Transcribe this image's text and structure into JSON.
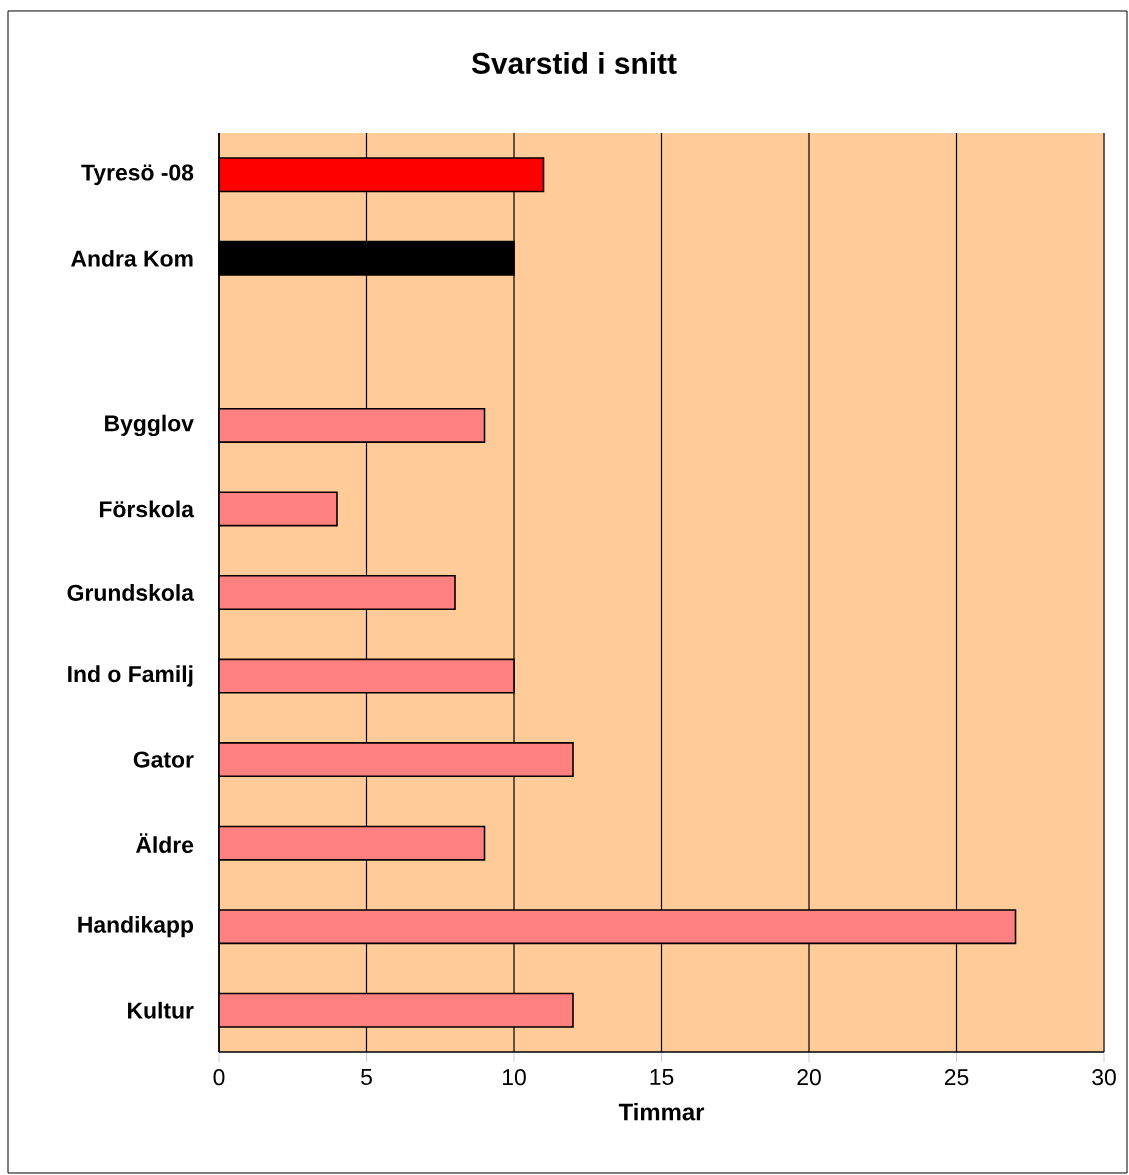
{
  "chart_data": {
    "type": "bar",
    "orientation": "horizontal",
    "title": "Svarstid i snitt",
    "xlabel": "Timmar",
    "categories": [
      "Tyresö -08",
      "Andra Kom",
      null,
      "Bygglov",
      "Förskola",
      "Grundskola",
      "Ind o Familj",
      "Gator",
      "Äldre",
      "Handikapp",
      "Kultur"
    ],
    "values": [
      11,
      10,
      null,
      9,
      4,
      8,
      10,
      12,
      9,
      27,
      12
    ],
    "colors": [
      "#ff0000",
      "#000000",
      null,
      "#ff8080",
      "#ff8080",
      "#ff8080",
      "#ff8080",
      "#ff8080",
      "#ff8080",
      "#ff8080",
      "#ff8080"
    ],
    "xlim": [
      0,
      30
    ],
    "xticks": [
      0,
      5,
      10,
      15,
      20,
      25,
      30
    ],
    "grid": "x"
  }
}
